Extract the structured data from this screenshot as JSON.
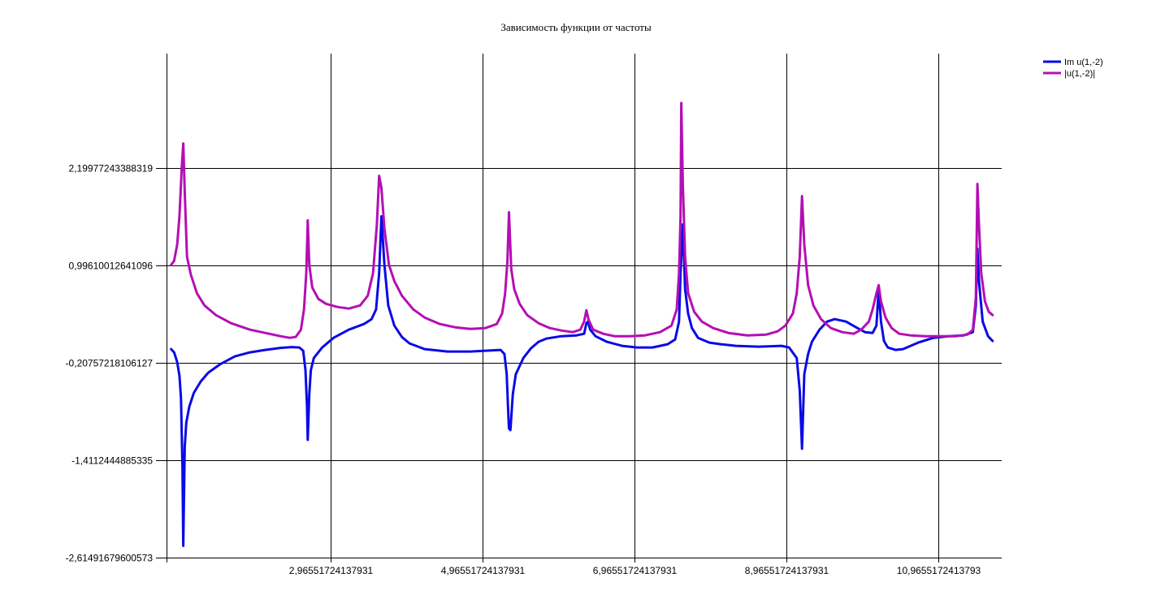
{
  "chart_data": {
    "type": "line",
    "title": "Зависимость функции от частоты",
    "xlabel": "",
    "ylabel": "",
    "xlim": [
      0.8,
      11.8
    ],
    "ylim": [
      -2.61491679600573,
      3.61
    ],
    "x_ticks": [
      {
        "value": 2.96551724137931,
        "label": "2,96551724137931"
      },
      {
        "value": 4.96551724137931,
        "label": "4,96551724137931"
      },
      {
        "value": 6.96551724137931,
        "label": "6,96551724137931"
      },
      {
        "value": 8.96551724137931,
        "label": "8,96551724137931"
      },
      {
        "value": 10.9655172413793,
        "label": "10,9655172413793"
      }
    ],
    "y_ticks": [
      {
        "value": 2.19977243388319,
        "label": "2,19977243388319"
      },
      {
        "value": 0.99610012641096,
        "label": "0,99610012641096"
      },
      {
        "value": -0.20757218106127,
        "label": "-0,20757218106127"
      },
      {
        "value": -1.4112444885335,
        "label": "-1,4112444885335"
      },
      {
        "value": -2.61491679600573,
        "label": "-2,61491679600573"
      }
    ],
    "grid": true,
    "legend": "top-right",
    "series": [
      {
        "name": "Im u(1,-2)",
        "color": "#0a0ae6",
        "points": [
          [
            0.86,
            -0.04
          ],
          [
            0.9,
            -0.08
          ],
          [
            0.94,
            -0.2
          ],
          [
            0.97,
            -0.37
          ],
          [
            0.99,
            -0.65
          ],
          [
            1.01,
            -1.5
          ],
          [
            1.02,
            -2.47
          ],
          [
            1.04,
            -1.25
          ],
          [
            1.06,
            -0.95
          ],
          [
            1.1,
            -0.75
          ],
          [
            1.16,
            -0.58
          ],
          [
            1.25,
            -0.44
          ],
          [
            1.35,
            -0.33
          ],
          [
            1.5,
            -0.23
          ],
          [
            1.7,
            -0.13
          ],
          [
            1.9,
            -0.08
          ],
          [
            2.1,
            -0.05
          ],
          [
            2.3,
            -0.025
          ],
          [
            2.45,
            -0.015
          ],
          [
            2.55,
            -0.02
          ],
          [
            2.6,
            -0.06
          ],
          [
            2.63,
            -0.3
          ],
          [
            2.65,
            -0.75
          ],
          [
            2.66,
            -1.16
          ],
          [
            2.68,
            -0.6
          ],
          [
            2.7,
            -0.3
          ],
          [
            2.74,
            -0.15
          ],
          [
            2.85,
            -0.02
          ],
          [
            3.0,
            0.1
          ],
          [
            3.2,
            0.2
          ],
          [
            3.4,
            0.27
          ],
          [
            3.5,
            0.33
          ],
          [
            3.56,
            0.45
          ],
          [
            3.6,
            0.9
          ],
          [
            3.63,
            1.6
          ],
          [
            3.67,
            1.0
          ],
          [
            3.72,
            0.5
          ],
          [
            3.8,
            0.25
          ],
          [
            3.9,
            0.11
          ],
          [
            4.0,
            0.03
          ],
          [
            4.2,
            -0.04
          ],
          [
            4.5,
            -0.07
          ],
          [
            4.8,
            -0.07
          ],
          [
            5.0,
            -0.06
          ],
          [
            5.2,
            -0.05
          ],
          [
            5.25,
            -0.1
          ],
          [
            5.28,
            -0.35
          ],
          [
            5.3,
            -0.8
          ],
          [
            5.31,
            -1.02
          ],
          [
            5.33,
            -1.04
          ],
          [
            5.36,
            -0.6
          ],
          [
            5.4,
            -0.35
          ],
          [
            5.5,
            -0.15
          ],
          [
            5.6,
            -0.03
          ],
          [
            5.7,
            0.05
          ],
          [
            5.8,
            0.09
          ],
          [
            6.0,
            0.12
          ],
          [
            6.2,
            0.13
          ],
          [
            6.3,
            0.15
          ],
          [
            6.33,
            0.28
          ],
          [
            6.35,
            0.3
          ],
          [
            6.38,
            0.2
          ],
          [
            6.45,
            0.12
          ],
          [
            6.6,
            0.05
          ],
          [
            6.8,
            0.0
          ],
          [
            7.0,
            -0.02
          ],
          [
            7.2,
            -0.02
          ],
          [
            7.4,
            0.02
          ],
          [
            7.5,
            0.08
          ],
          [
            7.55,
            0.3
          ],
          [
            7.57,
            0.9
          ],
          [
            7.6,
            1.5
          ],
          [
            7.63,
            0.7
          ],
          [
            7.67,
            0.4
          ],
          [
            7.72,
            0.22
          ],
          [
            7.8,
            0.1
          ],
          [
            7.95,
            0.04
          ],
          [
            8.1,
            0.02
          ],
          [
            8.3,
            0.0
          ],
          [
            8.6,
            -0.01
          ],
          [
            8.9,
            0.0
          ],
          [
            9.0,
            -0.02
          ],
          [
            9.1,
            -0.15
          ],
          [
            9.14,
            -0.55
          ],
          [
            9.17,
            -1.27
          ],
          [
            9.2,
            -0.35
          ],
          [
            9.25,
            -0.1
          ],
          [
            9.3,
            0.05
          ],
          [
            9.4,
            0.2
          ],
          [
            9.5,
            0.3
          ],
          [
            9.6,
            0.33
          ],
          [
            9.75,
            0.3
          ],
          [
            9.9,
            0.22
          ],
          [
            10.0,
            0.17
          ],
          [
            10.1,
            0.16
          ],
          [
            10.15,
            0.25
          ],
          [
            10.18,
            0.7
          ],
          [
            10.21,
            0.3
          ],
          [
            10.25,
            0.06
          ],
          [
            10.3,
            -0.02
          ],
          [
            10.4,
            -0.05
          ],
          [
            10.5,
            -0.04
          ],
          [
            10.7,
            0.04
          ],
          [
            10.9,
            0.1
          ],
          [
            11.1,
            0.12
          ],
          [
            11.3,
            0.13
          ],
          [
            11.42,
            0.17
          ],
          [
            11.46,
            0.5
          ],
          [
            11.48,
            1.2
          ],
          [
            11.5,
            0.8
          ],
          [
            11.55,
            0.3
          ],
          [
            11.62,
            0.12
          ],
          [
            11.68,
            0.06
          ]
        ]
      },
      {
        "name": "|u(1,-2)|",
        "color": "#b40fb4",
        "points": [
          [
            0.86,
            1.0
          ],
          [
            0.9,
            1.05
          ],
          [
            0.94,
            1.25
          ],
          [
            0.97,
            1.6
          ],
          [
            1.0,
            2.2
          ],
          [
            1.02,
            2.5
          ],
          [
            1.04,
            1.9
          ],
          [
            1.07,
            1.1
          ],
          [
            1.12,
            0.88
          ],
          [
            1.2,
            0.65
          ],
          [
            1.3,
            0.5
          ],
          [
            1.45,
            0.38
          ],
          [
            1.65,
            0.28
          ],
          [
            1.9,
            0.2
          ],
          [
            2.1,
            0.16
          ],
          [
            2.3,
            0.12
          ],
          [
            2.42,
            0.1
          ],
          [
            2.5,
            0.11
          ],
          [
            2.57,
            0.2
          ],
          [
            2.61,
            0.45
          ],
          [
            2.64,
            0.9
          ],
          [
            2.66,
            1.55
          ],
          [
            2.68,
            1.0
          ],
          [
            2.72,
            0.72
          ],
          [
            2.8,
            0.58
          ],
          [
            2.9,
            0.52
          ],
          [
            3.05,
            0.48
          ],
          [
            3.2,
            0.46
          ],
          [
            3.35,
            0.5
          ],
          [
            3.45,
            0.62
          ],
          [
            3.52,
            0.9
          ],
          [
            3.57,
            1.5
          ],
          [
            3.6,
            2.1
          ],
          [
            3.63,
            1.95
          ],
          [
            3.67,
            1.45
          ],
          [
            3.73,
            1.0
          ],
          [
            3.8,
            0.8
          ],
          [
            3.9,
            0.62
          ],
          [
            4.05,
            0.45
          ],
          [
            4.2,
            0.35
          ],
          [
            4.4,
            0.27
          ],
          [
            4.6,
            0.23
          ],
          [
            4.8,
            0.21
          ],
          [
            5.0,
            0.22
          ],
          [
            5.15,
            0.27
          ],
          [
            5.22,
            0.4
          ],
          [
            5.26,
            0.65
          ],
          [
            5.29,
            1.05
          ],
          [
            5.31,
            1.65
          ],
          [
            5.34,
            0.95
          ],
          [
            5.38,
            0.7
          ],
          [
            5.45,
            0.52
          ],
          [
            5.55,
            0.38
          ],
          [
            5.7,
            0.28
          ],
          [
            5.85,
            0.22
          ],
          [
            6.0,
            0.19
          ],
          [
            6.15,
            0.17
          ],
          [
            6.25,
            0.2
          ],
          [
            6.3,
            0.3
          ],
          [
            6.33,
            0.44
          ],
          [
            6.36,
            0.32
          ],
          [
            6.42,
            0.2
          ],
          [
            6.55,
            0.15
          ],
          [
            6.7,
            0.12
          ],
          [
            6.9,
            0.12
          ],
          [
            7.1,
            0.13
          ],
          [
            7.3,
            0.17
          ],
          [
            7.45,
            0.25
          ],
          [
            7.52,
            0.45
          ],
          [
            7.55,
            0.9
          ],
          [
            7.57,
            1.6
          ],
          [
            7.58,
            3.0
          ],
          [
            7.6,
            2.0
          ],
          [
            7.63,
            1.1
          ],
          [
            7.67,
            0.65
          ],
          [
            7.75,
            0.42
          ],
          [
            7.85,
            0.3
          ],
          [
            8.0,
            0.22
          ],
          [
            8.2,
            0.16
          ],
          [
            8.45,
            0.13
          ],
          [
            8.7,
            0.14
          ],
          [
            8.85,
            0.18
          ],
          [
            8.95,
            0.25
          ],
          [
            9.05,
            0.4
          ],
          [
            9.1,
            0.65
          ],
          [
            9.14,
            1.1
          ],
          [
            9.17,
            1.85
          ],
          [
            9.2,
            1.25
          ],
          [
            9.25,
            0.75
          ],
          [
            9.32,
            0.5
          ],
          [
            9.42,
            0.33
          ],
          [
            9.55,
            0.22
          ],
          [
            9.7,
            0.17
          ],
          [
            9.85,
            0.15
          ],
          [
            9.95,
            0.2
          ],
          [
            10.05,
            0.3
          ],
          [
            10.1,
            0.45
          ],
          [
            10.15,
            0.65
          ],
          [
            10.18,
            0.75
          ],
          [
            10.21,
            0.55
          ],
          [
            10.27,
            0.35
          ],
          [
            10.35,
            0.22
          ],
          [
            10.45,
            0.15
          ],
          [
            10.6,
            0.13
          ],
          [
            10.8,
            0.12
          ],
          [
            11.0,
            0.12
          ],
          [
            11.2,
            0.12
          ],
          [
            11.35,
            0.14
          ],
          [
            11.42,
            0.2
          ],
          [
            11.46,
            0.6
          ],
          [
            11.48,
            2.0
          ],
          [
            11.5,
            1.5
          ],
          [
            11.53,
            0.9
          ],
          [
            11.58,
            0.55
          ],
          [
            11.63,
            0.42
          ],
          [
            11.68,
            0.38
          ]
        ]
      }
    ]
  }
}
